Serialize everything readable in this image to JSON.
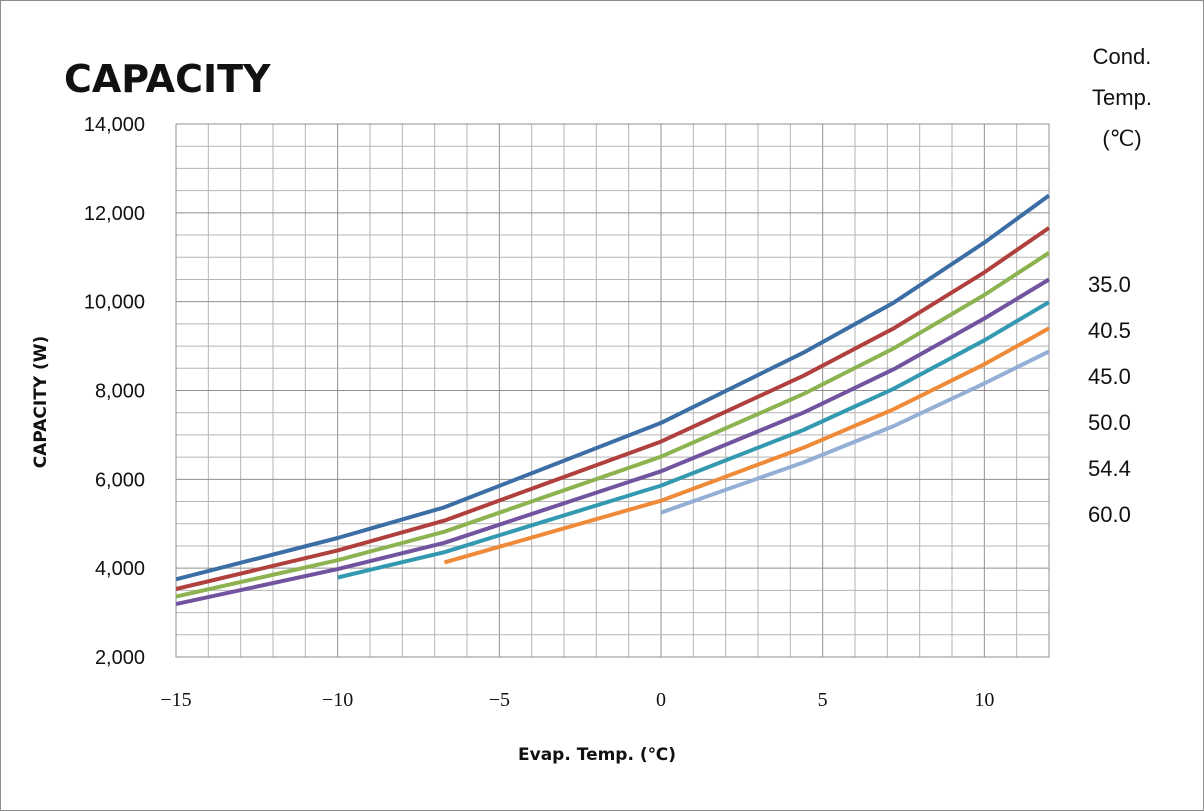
{
  "chart_data": {
    "type": "line",
    "title": "CAPACITY",
    "xlabel": "Evap. Temp. (℃)",
    "ylabel": "CAPACITY (W)",
    "xlim": [
      -15,
      12
    ],
    "ylim": [
      2000,
      14000
    ],
    "x_ticks": [
      -15,
      -10,
      -5,
      0,
      5,
      10
    ],
    "x_tick_labels": [
      "−15",
      "−10",
      "−5",
      "0",
      "5",
      "10"
    ],
    "y_ticks": [
      2000,
      4000,
      6000,
      8000,
      10000,
      12000,
      14000
    ],
    "y_tick_labels": [
      "2,000",
      "4,000",
      "6,000",
      "8,000",
      "10,000",
      "12,000",
      "14,000"
    ],
    "grid": true,
    "legend_title": [
      "Cond.",
      "Temp.",
      "(℃)"
    ],
    "legend_position": "right",
    "series": [
      {
        "name": "35.0",
        "color": "#3c6ea6",
        "x": [
          -15,
          -10,
          -6.7,
          0,
          4.4,
          7.2,
          10,
          12
        ],
        "y": [
          3750,
          4680,
          5370,
          7270,
          8850,
          9980,
          11330,
          12390
        ]
      },
      {
        "name": "40.5",
        "color": "#b0403d",
        "x": [
          -15,
          -10,
          -6.7,
          0,
          4.4,
          7.2,
          10,
          12
        ],
        "y": [
          3530,
          4400,
          5070,
          6850,
          8330,
          9400,
          10660,
          11660
        ]
      },
      {
        "name": "45.0",
        "color": "#8db350",
        "x": [
          -15,
          -10,
          -6.7,
          0,
          4.4,
          7.2,
          10,
          12
        ],
        "y": [
          3360,
          4180,
          4820,
          6510,
          7920,
          8950,
          10150,
          11100
        ]
      },
      {
        "name": "50.0",
        "color": "#7153a0",
        "x": [
          -15,
          -10,
          -6.7,
          0,
          4.4,
          7.2,
          10,
          12
        ],
        "y": [
          3190,
          3980,
          4570,
          6180,
          7500,
          8480,
          9620,
          10500
        ]
      },
      {
        "name": "54.4",
        "color": "#3399b0",
        "x": [
          -10,
          -6.7,
          0,
          4.4,
          7.2,
          10,
          12
        ],
        "y": [
          3790,
          4360,
          5860,
          7110,
          8040,
          9130,
          9990
        ]
      },
      {
        "name": "60.0",
        "color": "#ee8a38",
        "x": [
          -6.7,
          0,
          4.4,
          7.2,
          10,
          12
        ],
        "y": [
          4130,
          5520,
          6710,
          7580,
          8590,
          9400
        ]
      },
      {
        "name": "",
        "color": "#94aed5",
        "x": [
          0,
          4.4,
          7.2,
          10,
          12
        ],
        "y": [
          5250,
          6380,
          7200,
          8160,
          8880
        ]
      }
    ]
  }
}
